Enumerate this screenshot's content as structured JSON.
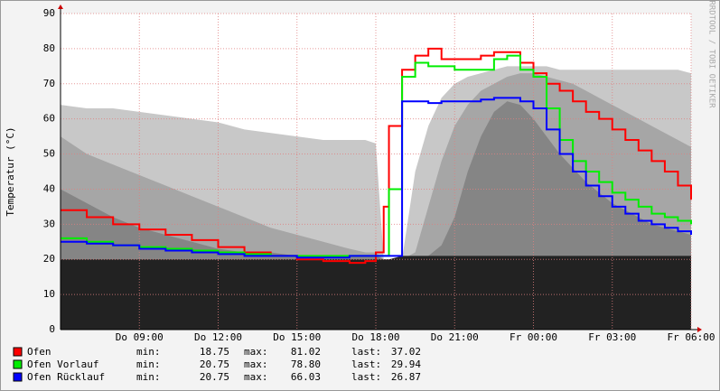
{
  "chart_data": {
    "type": "line",
    "y_label": "Temperatur (°C)",
    "watermark": "RRDTOOL / TOBI OETIKER",
    "x": [
      0,
      1,
      2,
      3,
      4,
      5,
      6,
      7,
      8,
      9,
      10,
      11,
      11.6,
      12,
      12.3,
      12.5,
      13,
      13.5,
      14,
      14.5,
      15,
      15.5,
      16,
      16.5,
      17,
      17.5,
      18,
      18.5,
      19,
      19.5,
      20,
      20.5,
      21,
      21.5,
      22,
      22.5,
      23,
      23.5,
      24
    ],
    "xlim": [
      0,
      24
    ],
    "xticks": [
      {
        "value": 3,
        "label": "Do 09:00"
      },
      {
        "value": 6,
        "label": "Do 12:00"
      },
      {
        "value": 9,
        "label": "Do 15:00"
      },
      {
        "value": 12,
        "label": "Do 18:00"
      },
      {
        "value": 15,
        "label": "Do 21:00"
      },
      {
        "value": 18,
        "label": "Fr 00:00"
      },
      {
        "value": 21,
        "label": "Fr 03:00"
      },
      {
        "value": 24,
        "label": "Fr 06:00"
      }
    ],
    "ylim": [
      0,
      90
    ],
    "yticks": [
      0,
      10,
      20,
      30,
      40,
      50,
      60,
      70,
      80,
      90
    ],
    "grid": true,
    "background_areas": [
      {
        "color": "#c8c8c8",
        "values": [
          64,
          63,
          63,
          62,
          61,
          60,
          59,
          57,
          56,
          55,
          54,
          54,
          54,
          53,
          20,
          20,
          20,
          45,
          58,
          66,
          70,
          72,
          73,
          74,
          75,
          75,
          75,
          75,
          74,
          74,
          74,
          74,
          74,
          74,
          74,
          74,
          74,
          74,
          73
        ]
      },
      {
        "color": "#a6a6a6",
        "values": [
          55,
          50,
          47,
          44,
          41,
          38,
          35,
          32,
          29,
          27,
          25,
          23,
          22,
          22,
          20,
          20,
          20,
          22,
          35,
          48,
          58,
          64,
          68,
          70,
          72,
          73,
          73,
          72,
          71,
          70,
          68,
          66,
          64,
          62,
          60,
          58,
          56,
          54,
          52
        ]
      },
      {
        "color": "#858585",
        "values": [
          40,
          36,
          32,
          29,
          27,
          25,
          23,
          22,
          22,
          21,
          21,
          21,
          21,
          21,
          20,
          20,
          20,
          20,
          21,
          24,
          32,
          45,
          55,
          62,
          65,
          64,
          60,
          55,
          50,
          46,
          42,
          39,
          36,
          34,
          32,
          30,
          29,
          28,
          27
        ]
      },
      {
        "color": "#222222",
        "values": [
          20,
          20,
          20,
          20,
          20,
          20,
          20,
          20,
          20,
          20,
          20,
          20,
          20,
          20,
          20,
          20,
          21,
          21,
          21,
          21,
          21,
          21,
          21,
          21,
          21,
          21,
          21,
          21,
          21,
          21,
          21,
          21,
          21,
          21,
          21,
          21,
          21,
          21,
          21
        ]
      }
    ],
    "stat_labels": [
      "min:",
      "max:",
      "last:"
    ],
    "series": [
      {
        "name": "Ofen",
        "color": "#ff0000",
        "min": 18.75,
        "max": 81.02,
        "last": 37.02,
        "values": [
          34,
          32,
          30,
          28.5,
          27,
          25.5,
          23.5,
          22,
          21,
          20,
          19.5,
          19,
          19.5,
          22,
          35,
          58,
          74,
          78,
          80,
          77,
          77,
          77,
          78,
          79,
          79,
          76,
          73,
          70,
          68,
          65,
          62,
          60,
          57,
          54,
          51,
          48,
          45,
          41,
          37
        ]
      },
      {
        "name": "Ofen Vorlauf",
        "color": "#00ee00",
        "min": 20.75,
        "max": {
          "value": 78.8,
          "label": "78.80"
        },
        "last": 29.94,
        "values": [
          26,
          25,
          24,
          23.5,
          23,
          22.5,
          22,
          21.5,
          21,
          21,
          21,
          21,
          21,
          21,
          21,
          40,
          72,
          76,
          75,
          75,
          74,
          74,
          74,
          77,
          78,
          74,
          72,
          63,
          54,
          48,
          45,
          42,
          39,
          37,
          35,
          33,
          32,
          31,
          30
        ]
      },
      {
        "name": "Ofen Rücklauf",
        "color": "#0000ff",
        "min": 20.75,
        "max": 66.03,
        "last": 26.87,
        "values": [
          25,
          24.5,
          24,
          23,
          22.5,
          22,
          21.5,
          21,
          21,
          20.5,
          20.5,
          21,
          21,
          21,
          21,
          21,
          65,
          65,
          64.5,
          65,
          65,
          65,
          65.5,
          66,
          66,
          65,
          63,
          57,
          50,
          45,
          41,
          38,
          35,
          33,
          31,
          30,
          29,
          28,
          27
        ]
      }
    ]
  }
}
